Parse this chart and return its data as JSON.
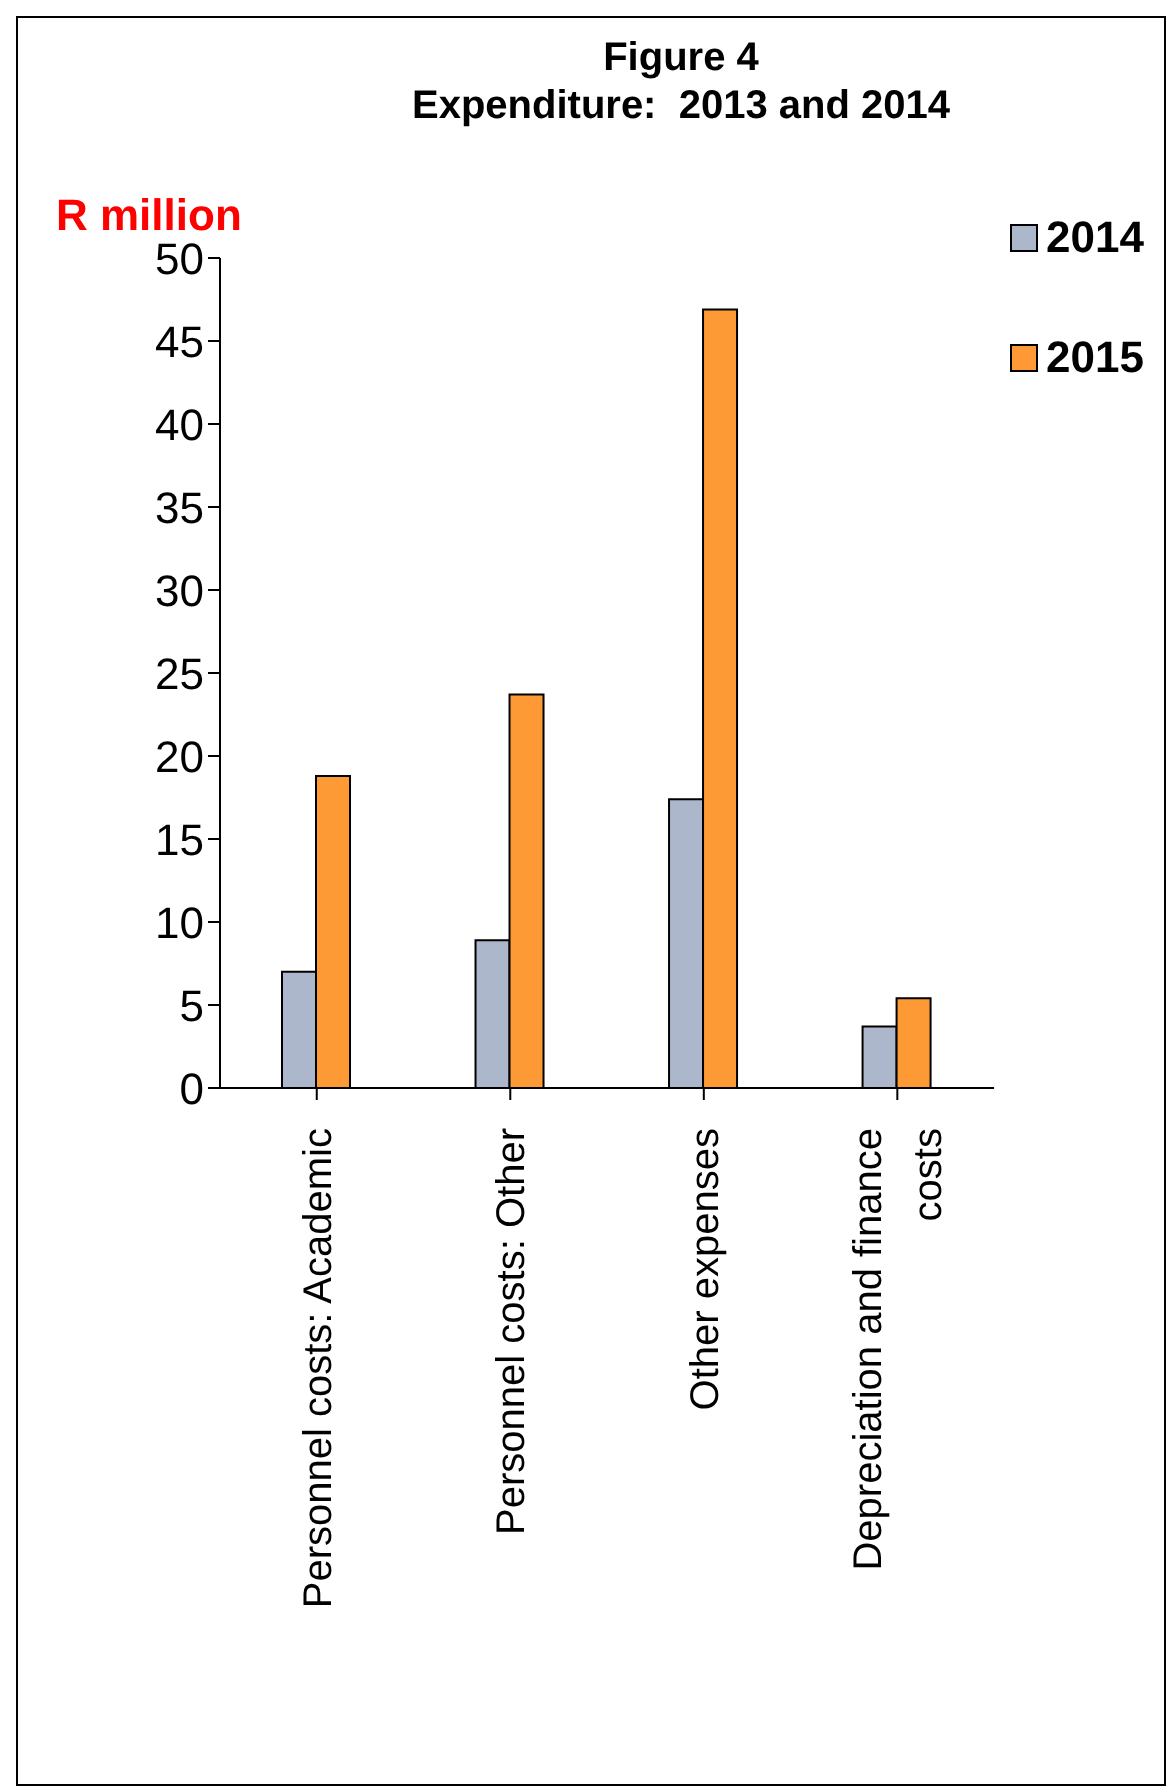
{
  "chart_data": {
    "type": "bar",
    "title": "Figure 4\nExpenditure:  2013 and 2014",
    "ylabel": "R million",
    "categories": [
      "Personnel costs: Academic",
      "Personnel costs: Other",
      "Other expenses",
      "Depreciation and finance costs"
    ],
    "series": [
      {
        "name": "2014",
        "color": "#acb7cb",
        "values": [
          7.0,
          8.9,
          17.4,
          3.7
        ]
      },
      {
        "name": "2015",
        "color": "#fd9a35",
        "values": [
          18.8,
          23.7,
          46.9,
          5.4
        ]
      }
    ],
    "ylim": [
      0,
      50
    ],
    "yticks": [
      0,
      5,
      10,
      15,
      20,
      25,
      30,
      35,
      40,
      45,
      50
    ],
    "grid": false,
    "legend": "top right"
  }
}
